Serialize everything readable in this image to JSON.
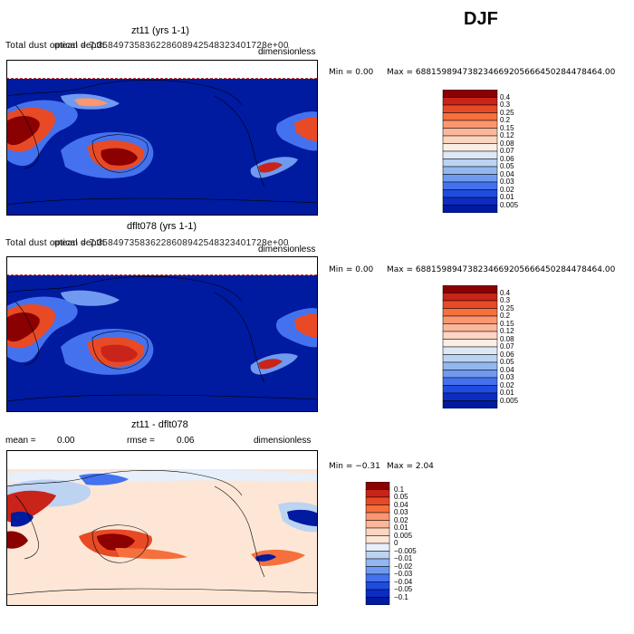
{
  "season": "DJF",
  "panels": [
    {
      "title": "zt11 (yrs 1-1)",
      "left_label": "Total dust optical depth",
      "mean_text": "mean = 7.35849735836228608942548323401728e+00",
      "units": "dimensionless",
      "min_text": "Min =     0.00",
      "max_text": "Max =  688159894738234669205666450284478464.00"
    },
    {
      "title": "dflt078 (yrs 1-1)",
      "left_label": "Total dust optical depth",
      "mean_text": "mean = 7.35849735836228608942548323401728e+00",
      "units": "dimensionless",
      "min_text": "Min =     0.00",
      "max_text": "Max =  688159894738234669205666450284478464.00"
    },
    {
      "title": "zt11 - dflt078",
      "mean_label": "mean =",
      "mean_value": "0.00",
      "rmse_label": "rmse =",
      "rmse_value": "0.06",
      "units": "dimensionless",
      "min_text": "Min =  −0.31",
      "max_text": "Max =     2.04"
    }
  ],
  "chart_data": [
    {
      "type": "heatmap",
      "title": "zt11 (yrs 1-1)",
      "variable": "Total dust optical depth",
      "units": "dimensionless",
      "colorbar_levels": [
        "0.4",
        "0.3",
        "0.25",
        "0.2",
        "0.15",
        "0.12",
        "0.08",
        "0.07",
        "0.06",
        "0.05",
        "0.04",
        "0.03",
        "0.02",
        "0.01",
        "0.005"
      ],
      "colors": [
        "#8b0000",
        "#c8241a",
        "#e84a26",
        "#f5703c",
        "#fa9670",
        "#fcb79a",
        "#fdd5c0",
        "#fbeee4",
        "#dce8f6",
        "#bcd3f2",
        "#93b7ef",
        "#6f9af0",
        "#4472ee",
        "#1f4ce0",
        "#0c2cc4",
        "#001aa0"
      ]
    },
    {
      "type": "heatmap",
      "title": "dflt078 (yrs 1-1)",
      "variable": "Total dust optical depth",
      "units": "dimensionless",
      "colorbar_levels": [
        "0.4",
        "0.3",
        "0.25",
        "0.2",
        "0.15",
        "0.12",
        "0.08",
        "0.07",
        "0.06",
        "0.05",
        "0.04",
        "0.03",
        "0.02",
        "0.01",
        "0.005"
      ],
      "colors": [
        "#8b0000",
        "#c8241a",
        "#e84a26",
        "#f5703c",
        "#fa9670",
        "#fcb79a",
        "#fdd5c0",
        "#fbeee4",
        "#dce8f6",
        "#bcd3f2",
        "#93b7ef",
        "#6f9af0",
        "#4472ee",
        "#1f4ce0",
        "#0c2cc4",
        "#001aa0"
      ]
    },
    {
      "type": "heatmap",
      "title": "zt11 - dflt078",
      "units": "dimensionless",
      "colorbar_levels": [
        "0.1",
        "0.05",
        "0.04",
        "0.03",
        "0.02",
        "0.01",
        "0.005",
        "0",
        "−0.005",
        "−0.01",
        "−0.02",
        "−0.03",
        "−0.04",
        "−0.05",
        "−0.1"
      ],
      "colors": [
        "#8b0000",
        "#c8241a",
        "#e84a26",
        "#f5703c",
        "#fa9670",
        "#fcb79a",
        "#fdd5c0",
        "#fde6d6",
        "#e6effa",
        "#bcd3f2",
        "#93b7ef",
        "#6f9af0",
        "#4472ee",
        "#1f4ce0",
        "#0c2cc4",
        "#001aa0"
      ]
    }
  ]
}
